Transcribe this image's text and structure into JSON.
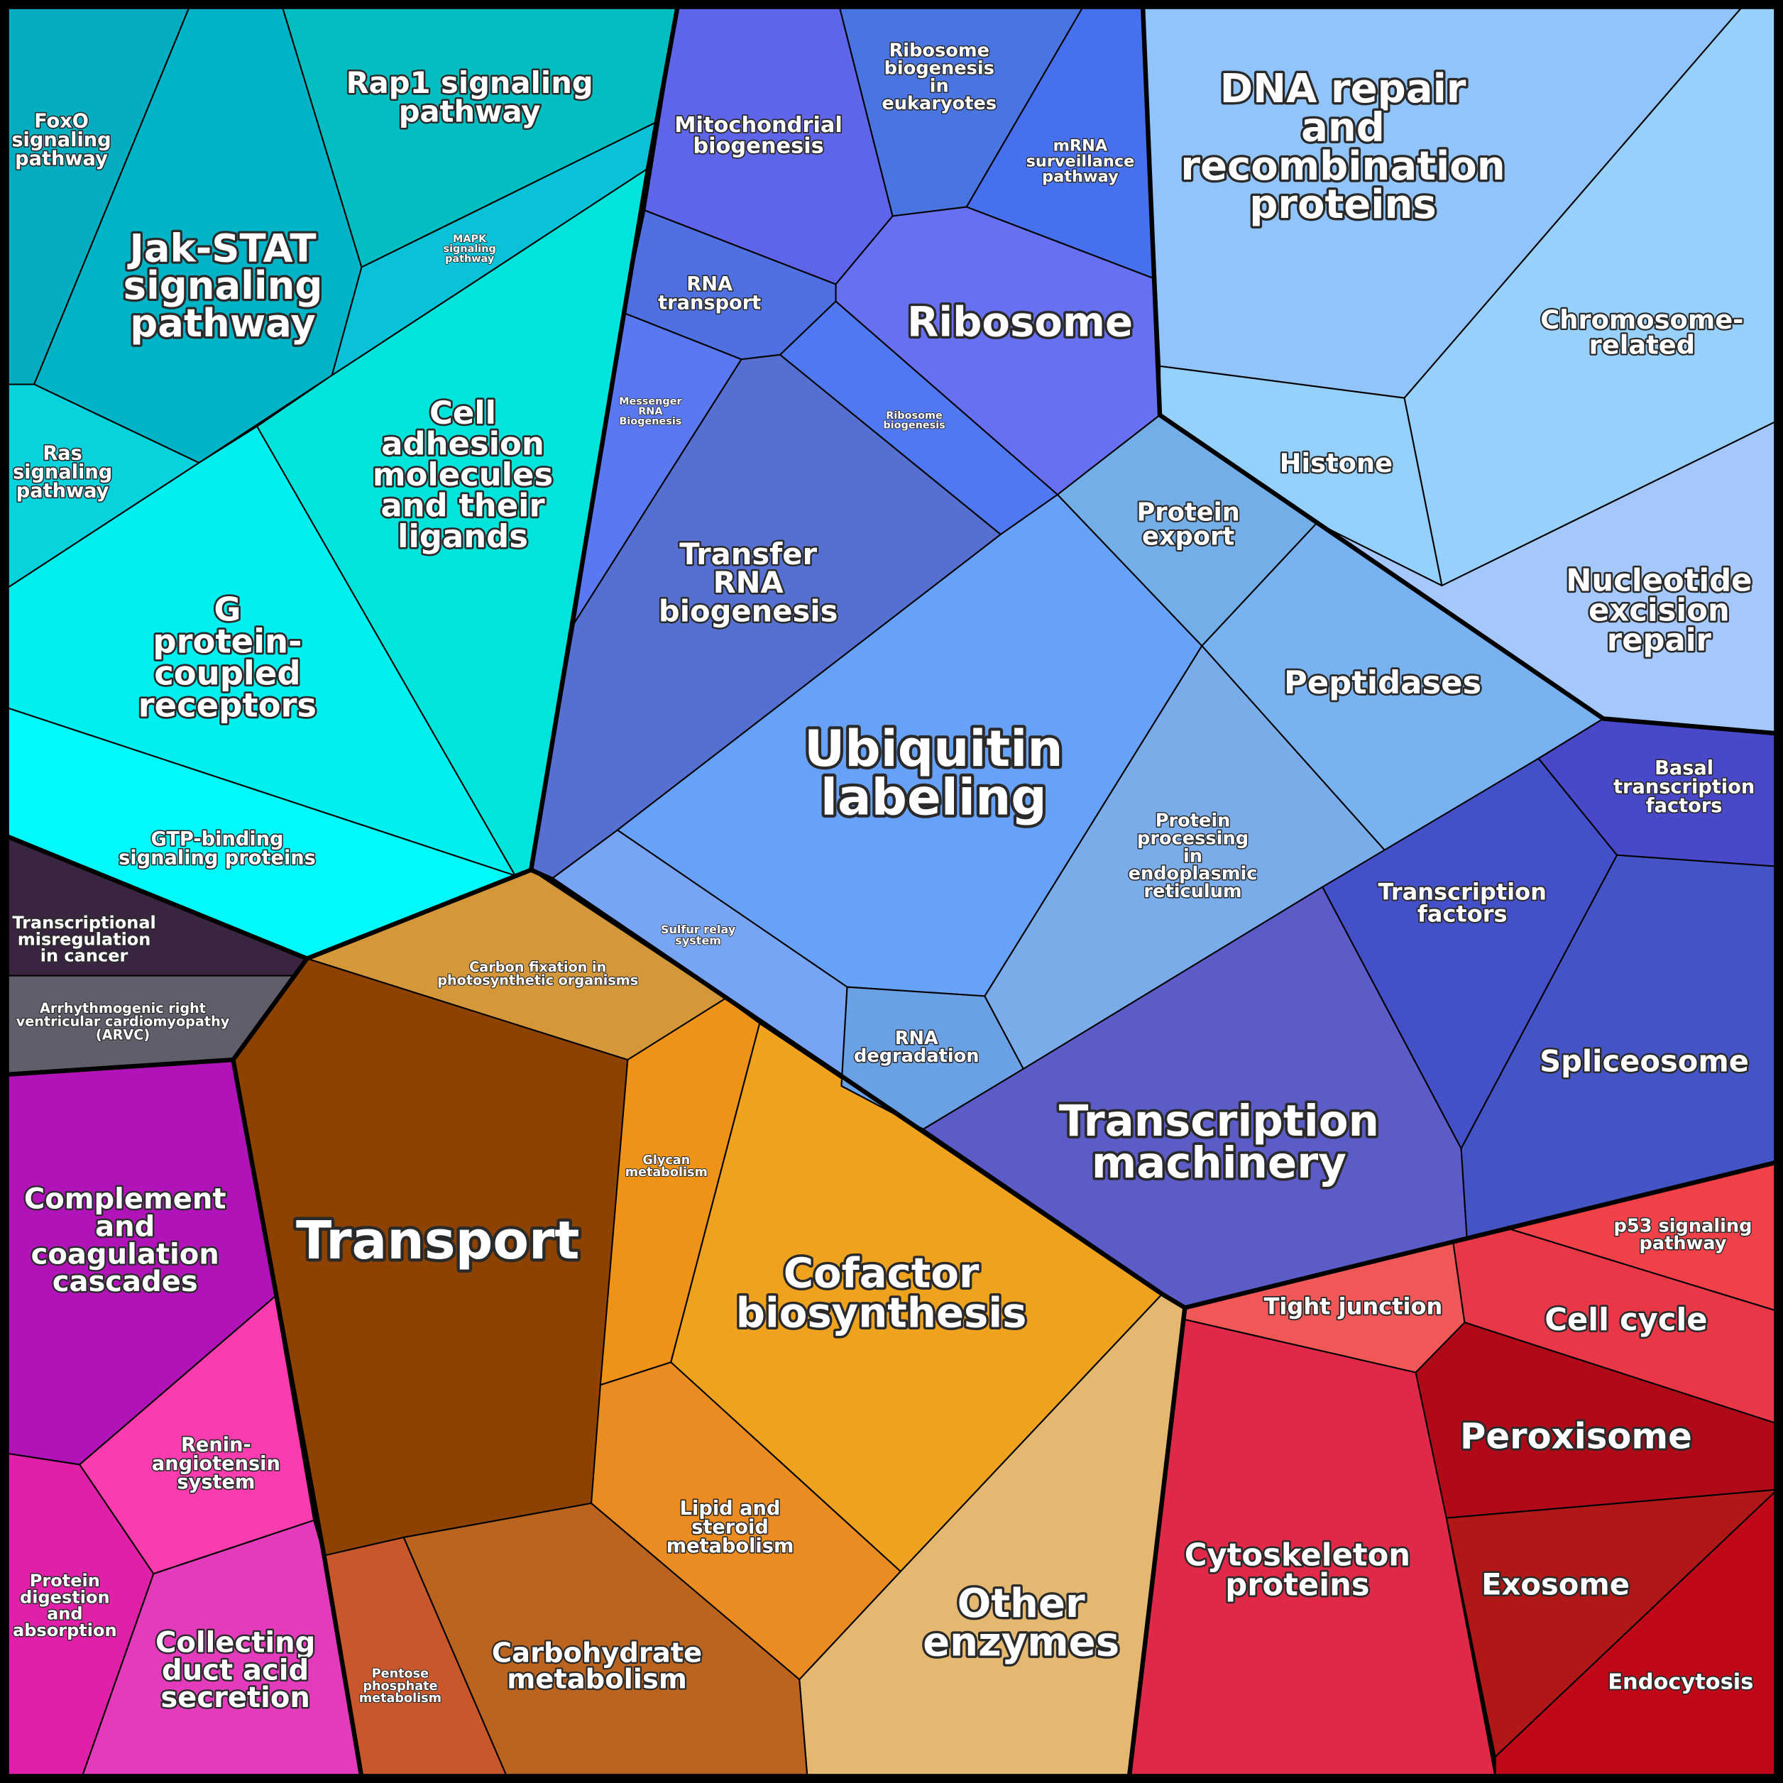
{
  "cells": [
    {
      "lines": [
        "FoxO",
        "signaling",
        "pathway"
      ]
    },
    {
      "lines": [
        "Jak-STAT",
        "signaling",
        "pathway"
      ]
    },
    {
      "lines": [
        "Rap1 signaling",
        "pathway"
      ]
    },
    {
      "lines": [
        "MAPK",
        "signaling",
        "pathway"
      ]
    },
    {
      "lines": [
        "Ras",
        "signaling",
        "pathway"
      ]
    },
    {
      "lines": [
        "Cell",
        "adhesion",
        "molecules",
        "and their",
        "ligands"
      ]
    },
    {
      "lines": [
        "G",
        "protein-",
        "coupled",
        "receptors"
      ]
    },
    {
      "lines": [
        "GTP-binding",
        "signaling proteins"
      ]
    },
    {
      "lines": [
        "Transcriptional",
        "misregulation",
        "in cancer"
      ]
    },
    {
      "lines": [
        "Arrhythmogenic right",
        "ventricular cardiomyopathy",
        "(ARVC)"
      ]
    },
    {
      "lines": [
        "Complement",
        "and",
        "coagulation",
        "cascades"
      ]
    },
    {
      "lines": [
        "Renin-",
        "angiotensin",
        "system"
      ]
    },
    {
      "lines": [
        "Protein",
        "digestion",
        "and",
        "absorption"
      ]
    },
    {
      "lines": [
        "Collecting",
        "duct acid",
        "secretion"
      ]
    },
    {
      "lines": [
        "Carbon fixation in",
        "photosynthetic organisms"
      ]
    },
    {
      "lines": [
        "Transport"
      ]
    },
    {
      "lines": [
        "Glycan",
        "metabolism"
      ]
    },
    {
      "lines": [
        "Cofactor",
        "biosynthesis"
      ]
    },
    {
      "lines": [
        "Lipid and",
        "steroid",
        "metabolism"
      ]
    },
    {
      "lines": [
        "Other",
        "enzymes"
      ]
    },
    {
      "lines": [
        "Carbohydrate",
        "metabolism"
      ]
    },
    {
      "lines": [
        "Pentose",
        "phosphate",
        "metabolism"
      ]
    },
    {
      "lines": [
        "Mitochondrial",
        "biogenesis"
      ]
    },
    {
      "lines": [
        "Ribosome",
        "biogenesis",
        "in",
        "eukaryotes"
      ]
    },
    {
      "lines": [
        "mRNA",
        "surveillance",
        "pathway"
      ]
    },
    {
      "lines": [
        "Ribosome"
      ]
    },
    {
      "lines": [
        "RNA",
        "transport"
      ]
    },
    {
      "lines": [
        "Ribosome",
        "biogenesis"
      ]
    },
    {
      "lines": [
        "Messenger",
        "RNA",
        "Biogenesis"
      ]
    },
    {
      "lines": [
        "Transfer",
        "RNA",
        "biogenesis"
      ]
    },
    {
      "lines": [
        "Ubiquitin",
        "labeling"
      ]
    },
    {
      "lines": [
        "Sulfur relay",
        "system"
      ]
    },
    {
      "lines": [
        "RNA",
        "degradation"
      ]
    },
    {
      "lines": [
        "Protein",
        "export"
      ]
    },
    {
      "lines": [
        "Peptidases"
      ]
    },
    {
      "lines": [
        "Protein",
        "processing",
        "in",
        "endoplasmic",
        "reticulum"
      ]
    },
    {
      "lines": [
        "Transcription",
        "machinery"
      ]
    },
    {
      "lines": [
        "Transcription",
        "factors"
      ]
    },
    {
      "lines": [
        "Basal",
        "transcription",
        "factors"
      ]
    },
    {
      "lines": [
        "Spliceosome"
      ]
    },
    {
      "lines": [
        "DNA repair",
        "and",
        "recombination",
        "proteins"
      ]
    },
    {
      "lines": [
        "Chromosome-",
        "related"
      ]
    },
    {
      "lines": [
        "Histone"
      ]
    },
    {
      "lines": [
        "Nucleotide",
        "excision",
        "repair"
      ]
    },
    {
      "lines": [
        "Tight junction"
      ]
    },
    {
      "lines": [
        "p53 signaling",
        "pathway"
      ]
    },
    {
      "lines": [
        "Cell cycle"
      ]
    },
    {
      "lines": [
        "Peroxisome"
      ]
    },
    {
      "lines": [
        "Exosome"
      ]
    },
    {
      "lines": [
        "Endocytosis"
      ]
    },
    {
      "lines": [
        "Cytoskeleton",
        "proteins"
      ]
    }
  ]
}
